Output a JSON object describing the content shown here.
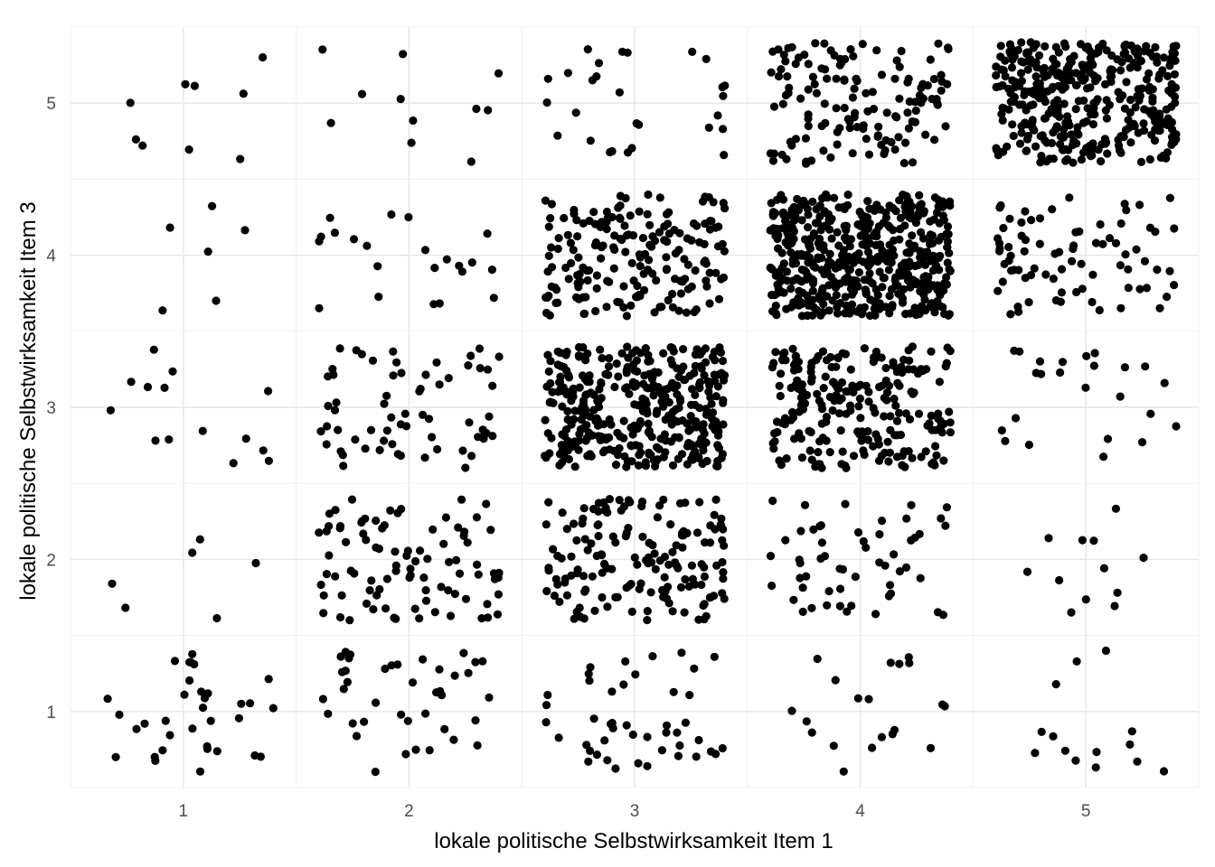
{
  "chart_data": {
    "type": "scatter",
    "title": "",
    "xlabel": "lokale politische Selbstwirksamkeit Item 1",
    "ylabel": "lokale politische Selbstwirksamkeit Item 3",
    "xlim": [
      0.5,
      5.5
    ],
    "ylim": [
      0.5,
      5.5
    ],
    "x_ticks": [
      1,
      2,
      3,
      4,
      5
    ],
    "y_ticks": [
      1,
      2,
      3,
      4,
      5
    ],
    "jitter": 0.4,
    "grid": true,
    "legend": "none",
    "point_color": "#000000",
    "theme": "minimal",
    "cell_counts": [
      [
        1,
        1,
        34
      ],
      [
        1,
        2,
        6
      ],
      [
        1,
        3,
        14
      ],
      [
        1,
        4,
        6
      ],
      [
        1,
        5,
        9
      ],
      [
        2,
        1,
        40
      ],
      [
        2,
        2,
        90
      ],
      [
        2,
        3,
        65
      ],
      [
        2,
        4,
        22
      ],
      [
        2,
        5,
        11
      ],
      [
        3,
        1,
        45
      ],
      [
        3,
        2,
        160
      ],
      [
        3,
        3,
        380
      ],
      [
        3,
        4,
        190
      ],
      [
        3,
        5,
        28
      ],
      [
        4,
        1,
        20
      ],
      [
        4,
        2,
        55
      ],
      [
        4,
        3,
        230
      ],
      [
        4,
        4,
        520
      ],
      [
        4,
        5,
        140
      ],
      [
        5,
        1,
        14
      ],
      [
        5,
        2,
        12
      ],
      [
        5,
        3,
        24
      ],
      [
        5,
        4,
        80
      ],
      [
        5,
        5,
        380
      ]
    ]
  }
}
